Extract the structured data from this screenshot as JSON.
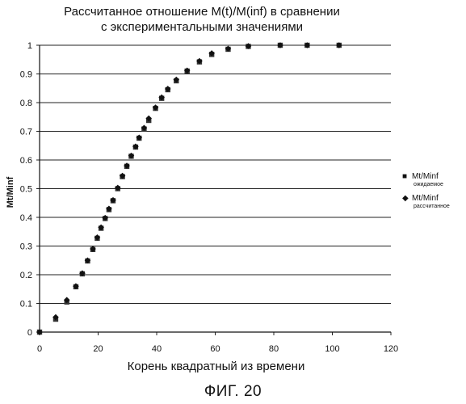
{
  "chart_data": {
    "type": "scatter",
    "title": "Рассчитанное отношение M(t)/M(inf) в сравнении",
    "title_line2": "с экспериментальными значениями",
    "xlabel": "Корень квадратный из времени",
    "ylabel": "Mt/Minf",
    "xlim": [
      0,
      120
    ],
    "ylim": [
      0,
      1
    ],
    "xticks": [
      "0",
      "20",
      "40",
      "60",
      "80",
      "100",
      "120"
    ],
    "yticks": [
      "0",
      "0.1",
      "0.2",
      "0.3",
      "0.4",
      "0.5",
      "0.6",
      "0.7",
      "0.8",
      "0.9",
      "1"
    ],
    "grid": "horizontal",
    "legend_position": "right",
    "series": [
      {
        "name": "Mt/Minf",
        "sublabel": "ожидаемое",
        "marker": "square",
        "points": [
          [
            0,
            0
          ],
          [
            5.5,
            0.045
          ],
          [
            9.3,
            0.105
          ],
          [
            12.4,
            0.158
          ],
          [
            14.6,
            0.203
          ],
          [
            16.4,
            0.248
          ],
          [
            18.2,
            0.288
          ],
          [
            19.7,
            0.327
          ],
          [
            21.0,
            0.362
          ],
          [
            22.4,
            0.396
          ],
          [
            23.7,
            0.427
          ],
          [
            25.1,
            0.458
          ],
          [
            26.7,
            0.5
          ],
          [
            28.3,
            0.542
          ],
          [
            29.8,
            0.578
          ],
          [
            31.3,
            0.613
          ],
          [
            32.8,
            0.645
          ],
          [
            34.0,
            0.676
          ],
          [
            35.7,
            0.708
          ],
          [
            37.3,
            0.738
          ],
          [
            39.6,
            0.78
          ],
          [
            41.7,
            0.815
          ],
          [
            43.8,
            0.845
          ],
          [
            46.7,
            0.876
          ],
          [
            50.4,
            0.91
          ],
          [
            54.6,
            0.942
          ],
          [
            58.8,
            0.968
          ],
          [
            64.4,
            0.986
          ],
          [
            71.3,
            0.996
          ],
          [
            82.2,
            1.0
          ],
          [
            91.4,
            1.0
          ],
          [
            102.3,
            1.0
          ]
        ]
      },
      {
        "name": "Mt/Minf",
        "sublabel": "рассчитанное",
        "marker": "diamond",
        "points": [
          [
            0,
            0
          ],
          [
            5.5,
            0.052
          ],
          [
            9.3,
            0.112
          ],
          [
            12.4,
            0.16
          ],
          [
            14.6,
            0.205
          ],
          [
            16.4,
            0.25
          ],
          [
            18.2,
            0.29
          ],
          [
            19.7,
            0.33
          ],
          [
            21.0,
            0.365
          ],
          [
            22.4,
            0.398
          ],
          [
            23.7,
            0.43
          ],
          [
            25.1,
            0.46
          ],
          [
            26.7,
            0.503
          ],
          [
            28.3,
            0.545
          ],
          [
            29.8,
            0.58
          ],
          [
            31.3,
            0.615
          ],
          [
            32.8,
            0.647
          ],
          [
            34.0,
            0.678
          ],
          [
            35.7,
            0.712
          ],
          [
            37.3,
            0.745
          ],
          [
            39.6,
            0.783
          ],
          [
            41.7,
            0.818
          ],
          [
            43.8,
            0.848
          ],
          [
            46.7,
            0.88
          ],
          [
            50.4,
            0.912
          ],
          [
            54.6,
            0.945
          ],
          [
            58.8,
            0.972
          ],
          [
            64.4,
            0.988
          ],
          [
            71.3,
            0.997
          ],
          [
            82.2,
            1.0
          ],
          [
            91.4,
            1.0
          ],
          [
            102.3,
            1.0
          ]
        ]
      }
    ]
  },
  "caption": "ФИГ. 20"
}
